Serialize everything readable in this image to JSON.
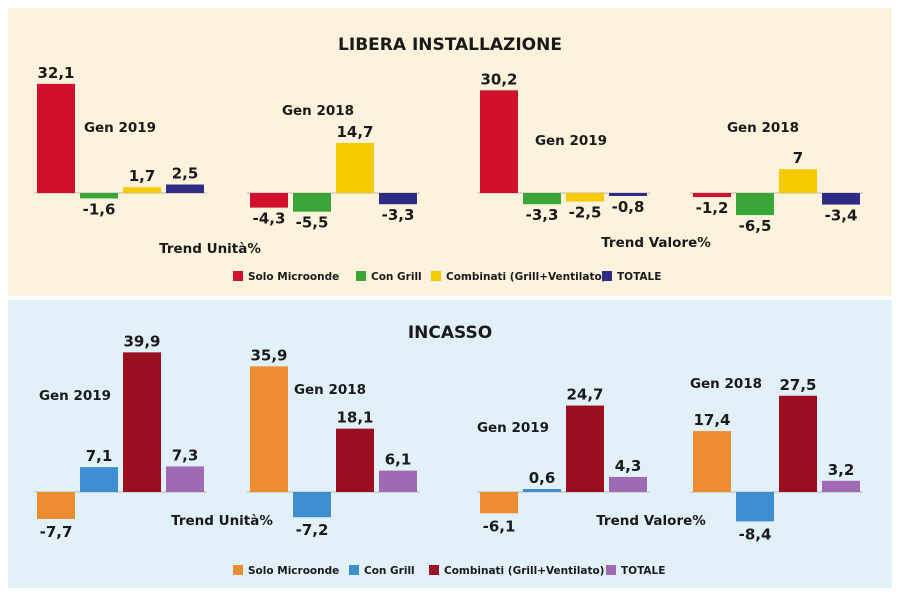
{
  "chart_data": [
    {
      "title": "LIBERA INSTALLAZIONE",
      "type": "bar",
      "series_names": [
        "Solo Microonde",
        "Con Grill",
        "Combinati (Grill+Ventilato)",
        "TOTALE"
      ],
      "colors": [
        "#d0102c",
        "#3aa63a",
        "#f6c900",
        "#2e2c86"
      ],
      "panels": [
        {
          "metric": "Trend Unità%",
          "period": "Gen 2019",
          "values": [
            32.1,
            -1.6,
            1.7,
            2.5
          ],
          "labels": [
            "32,1",
            "-1,6",
            "1,7",
            "2,5"
          ]
        },
        {
          "metric": "Trend Unità%",
          "period": "Gen 2018",
          "values": [
            -4.3,
            -5.5,
            14.7,
            -3.3
          ],
          "labels": [
            "-4,3",
            "-5,5",
            "14,7",
            "-3,3"
          ]
        },
        {
          "metric": "Trend Valore%",
          "period": "Gen 2019",
          "values": [
            30.2,
            -3.3,
            -2.5,
            -0.8
          ],
          "labels": [
            "30,2",
            "-3,3",
            "-2,5",
            "-0,8"
          ]
        },
        {
          "metric": "Trend Valore%",
          "period": "Gen 2018",
          "values": [
            -1.2,
            -6.5,
            7,
            -3.4
          ],
          "labels": [
            "-1,2",
            "-6,5",
            "7",
            "-3,4"
          ]
        }
      ],
      "metric_labels": [
        "Trend Unità%",
        "Trend Valore%"
      ]
    },
    {
      "title": "INCASSO",
      "type": "bar",
      "series_names": [
        "Solo Microonde",
        "Con Grill",
        "Combinati (Grill+Ventilato)",
        "TOTALE"
      ],
      "colors": [
        "#ee8c32",
        "#3d8fd1",
        "#9a1020",
        "#a06ab4"
      ],
      "panels": [
        {
          "metric": "Trend Unità%",
          "period": "Gen 2019",
          "values": [
            -7.7,
            7.1,
            39.9,
            7.3
          ],
          "labels": [
            "-7,7",
            "7,1",
            "39,9",
            "7,3"
          ]
        },
        {
          "metric": "Trend Unità%",
          "period": "Gen 2018",
          "values": [
            35.9,
            -7.2,
            18.1,
            6.1
          ],
          "labels": [
            "35,9",
            "-7,2",
            "18,1",
            "6,1"
          ]
        },
        {
          "metric": "Trend Valore%",
          "period": "Gen 2019",
          "values": [
            -6.1,
            0.6,
            24.7,
            4.3
          ],
          "labels": [
            "-6,1",
            "0,6",
            "24,7",
            "4,3"
          ]
        },
        {
          "metric": "Trend Valore%",
          "period": "Gen 2018",
          "values": [
            17.4,
            -8.4,
            27.5,
            3.2
          ],
          "labels": [
            "17,4",
            "-8,4",
            "27,5",
            "3,2"
          ]
        }
      ],
      "metric_labels": [
        "Trend Unità%",
        "Trend Valore%"
      ]
    }
  ],
  "section_colors": {
    "top_background": "#fdf3dc",
    "bottom_background": "#e2f0fa"
  }
}
